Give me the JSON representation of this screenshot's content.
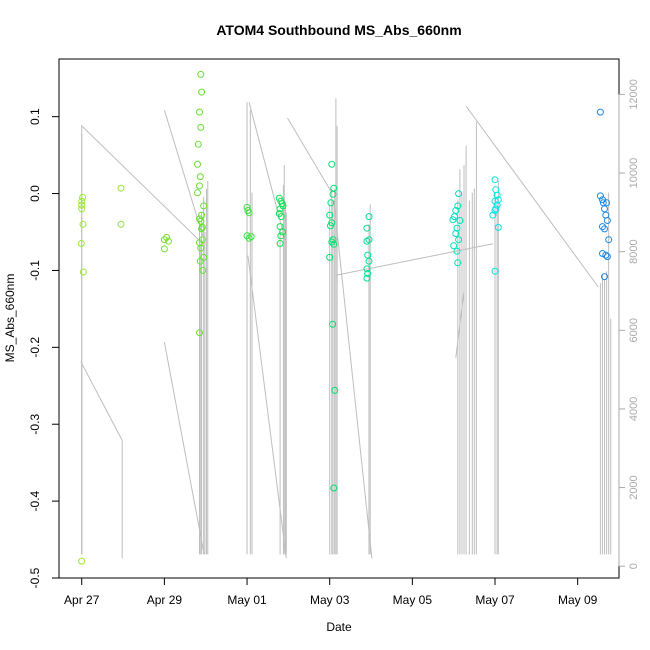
{
  "chart_data": {
    "type": "scatter",
    "title": "ATOM4 Southbound MS_Abs_660nm",
    "xlabel": "Date",
    "ylabel": "MS_Abs_660nm",
    "x_ticks": [
      "Apr 27",
      "Apr 29",
      "May 01",
      "May 03",
      "May 05",
      "May 07",
      "May 09"
    ],
    "x_tick_days": [
      0,
      2,
      4,
      6,
      8,
      10,
      12
    ],
    "xlim_days": [
      -0.55,
      13.0
    ],
    "y_ticks": [
      -0.5,
      -0.4,
      -0.3,
      -0.2,
      -0.1,
      0.0,
      0.1
    ],
    "y_tick_labels": [
      "-0.5",
      "-0.4",
      "-0.3",
      "-0.2",
      "-0.1",
      "0.0",
      "0.1"
    ],
    "ylim": [
      -0.5,
      0.175
    ],
    "y2_ticks": [
      0,
      2000,
      4000,
      6000,
      8000,
      10000,
      12000
    ],
    "y2_tick_labels": [
      "0",
      "2000",
      "4000",
      "6000",
      "8000",
      "10000",
      "12000"
    ],
    "y2lim": [
      -300,
      12900
    ],
    "grid": false,
    "colors": {
      "points_start": "#8fe33a",
      "points_mid": "#00e070",
      "points_late": "#00e5e5",
      "points_end": "#1e88e5",
      "altitude_line": "#bebebe",
      "axis": "#000000",
      "right_axis": "#aaaaaa"
    },
    "series": [
      {
        "type": "points",
        "points": [
          [
            0.0,
            -0.01,
            "#9be83a"
          ],
          [
            0.0,
            -0.015,
            "#9be83a"
          ],
          [
            0.0,
            -0.02,
            "#9be83a"
          ],
          [
            0.02,
            -0.005,
            "#9be83a"
          ],
          [
            0.03,
            -0.04,
            "#9be83a"
          ],
          [
            -0.01,
            -0.065,
            "#9be83a"
          ],
          [
            0.04,
            -0.102,
            "#9be83a"
          ],
          [
            0.0,
            -0.478,
            "#9be83a"
          ],
          [
            0.95,
            0.007,
            "#8fe33a"
          ],
          [
            0.95,
            -0.04,
            "#8fe33a"
          ],
          [
            2.0,
            -0.06,
            "#78e030"
          ],
          [
            2.05,
            -0.057,
            "#78e030"
          ],
          [
            2.1,
            -0.062,
            "#78e030"
          ],
          [
            2.0,
            -0.072,
            "#78e030"
          ],
          [
            2.88,
            0.155,
            "#66e030"
          ],
          [
            2.9,
            0.132,
            "#66e030"
          ],
          [
            2.85,
            0.106,
            "#66e030"
          ],
          [
            2.88,
            0.086,
            "#66e030"
          ],
          [
            2.82,
            0.064,
            "#66e030"
          ],
          [
            2.8,
            0.038,
            "#66e030"
          ],
          [
            2.87,
            0.022,
            "#66e030"
          ],
          [
            2.85,
            0.01,
            "#66e030"
          ],
          [
            2.8,
            0.001,
            "#66e030"
          ],
          [
            2.95,
            -0.016,
            "#66e030"
          ],
          [
            2.9,
            -0.028,
            "#66e030"
          ],
          [
            2.85,
            -0.033,
            "#66e030"
          ],
          [
            2.88,
            -0.036,
            "#66e030"
          ],
          [
            2.92,
            -0.044,
            "#66e030"
          ],
          [
            2.9,
            -0.046,
            "#66e030"
          ],
          [
            2.92,
            -0.06,
            "#66e030"
          ],
          [
            2.85,
            -0.064,
            "#66e030"
          ],
          [
            2.88,
            -0.071,
            "#66e030"
          ],
          [
            2.95,
            -0.083,
            "#66e030"
          ],
          [
            2.87,
            -0.088,
            "#66e030"
          ],
          [
            2.93,
            -0.1,
            "#66e030"
          ],
          [
            2.85,
            -0.181,
            "#66e030"
          ],
          [
            4.0,
            -0.018,
            "#40e040"
          ],
          [
            4.02,
            -0.022,
            "#40e040"
          ],
          [
            4.05,
            -0.025,
            "#40e040"
          ],
          [
            4.0,
            -0.055,
            "#40e040"
          ],
          [
            4.05,
            -0.058,
            "#40e040"
          ],
          [
            4.1,
            -0.056,
            "#40e040"
          ],
          [
            4.78,
            -0.006,
            "#10e050"
          ],
          [
            4.82,
            -0.01,
            "#10e050"
          ],
          [
            4.85,
            -0.013,
            "#10e050"
          ],
          [
            4.87,
            -0.016,
            "#10e050"
          ],
          [
            4.8,
            -0.02,
            "#10e050"
          ],
          [
            4.78,
            -0.026,
            "#10e050"
          ],
          [
            4.83,
            -0.03,
            "#10e050"
          ],
          [
            4.8,
            -0.043,
            "#10e050"
          ],
          [
            4.86,
            -0.05,
            "#10e050"
          ],
          [
            4.82,
            -0.055,
            "#10e050"
          ],
          [
            4.8,
            -0.065,
            "#10e050"
          ],
          [
            6.05,
            0.038,
            "#00e070"
          ],
          [
            6.1,
            0.007,
            "#00e070"
          ],
          [
            6.08,
            -0.001,
            "#00e070"
          ],
          [
            6.03,
            -0.012,
            "#00e070"
          ],
          [
            6.0,
            -0.028,
            "#00e070"
          ],
          [
            6.05,
            -0.038,
            "#00e070"
          ],
          [
            6.02,
            -0.042,
            "#00e070"
          ],
          [
            6.08,
            -0.06,
            "#00e070"
          ],
          [
            6.05,
            -0.063,
            "#00e070"
          ],
          [
            6.1,
            -0.066,
            "#00e070"
          ],
          [
            6.0,
            -0.083,
            "#00e070"
          ],
          [
            6.07,
            -0.17,
            "#00e070"
          ],
          [
            6.12,
            -0.256,
            "#00e070"
          ],
          [
            6.1,
            -0.383,
            "#00e070"
          ],
          [
            6.95,
            -0.03,
            "#00e090"
          ],
          [
            6.9,
            -0.045,
            "#00e090"
          ],
          [
            6.95,
            -0.06,
            "#00e090"
          ],
          [
            6.9,
            -0.062,
            "#00e090"
          ],
          [
            6.92,
            -0.08,
            "#00e090"
          ],
          [
            6.95,
            -0.088,
            "#00e090"
          ],
          [
            6.9,
            -0.098,
            "#00e090"
          ],
          [
            6.92,
            -0.104,
            "#00e090"
          ],
          [
            6.9,
            -0.11,
            "#00e090"
          ],
          [
            10.0,
            0.018,
            "#00e5e5"
          ],
          [
            10.02,
            0.005,
            "#00e5e5"
          ],
          [
            10.05,
            -0.002,
            "#00e5e5"
          ],
          [
            10.08,
            -0.008,
            "#00e5e5"
          ],
          [
            10.0,
            -0.01,
            "#00e5e5"
          ],
          [
            10.05,
            -0.015,
            "#00e5e5"
          ],
          [
            10.02,
            -0.02,
            "#00e5e5"
          ],
          [
            10.0,
            -0.022,
            "#00e5e5"
          ],
          [
            9.95,
            -0.028,
            "#00e5e5"
          ],
          [
            10.08,
            -0.044,
            "#00e5e5"
          ],
          [
            10.0,
            -0.101,
            "#00e5e5"
          ],
          [
            9.12,
            0.0,
            "#00e0c0"
          ],
          [
            9.1,
            -0.016,
            "#00e0c0"
          ],
          [
            9.05,
            -0.022,
            "#00e0c0"
          ],
          [
            9.02,
            -0.03,
            "#00e0c0"
          ],
          [
            8.98,
            -0.034,
            "#00e0c0"
          ],
          [
            9.15,
            -0.035,
            "#00e0c0"
          ],
          [
            9.08,
            -0.045,
            "#00e0c0"
          ],
          [
            9.05,
            -0.052,
            "#00e0c0"
          ],
          [
            9.12,
            -0.06,
            "#00e0c0"
          ],
          [
            9.0,
            -0.068,
            "#00e0c0"
          ],
          [
            9.08,
            -0.075,
            "#00e0c0"
          ],
          [
            9.1,
            -0.09,
            "#00e0c0"
          ],
          [
            12.55,
            0.106,
            "#1e88e5"
          ],
          [
            12.55,
            -0.003,
            "#1e88e5"
          ],
          [
            12.6,
            -0.008,
            "#1e88e5"
          ],
          [
            12.62,
            -0.012,
            "#1e88e5"
          ],
          [
            12.7,
            -0.012,
            "#1e88e5"
          ],
          [
            12.65,
            -0.02,
            "#1e88e5"
          ],
          [
            12.68,
            -0.028,
            "#1e88e5"
          ],
          [
            12.72,
            -0.035,
            "#1e88e5"
          ],
          [
            12.6,
            -0.043,
            "#1e88e5"
          ],
          [
            12.65,
            -0.046,
            "#1e88e5"
          ],
          [
            12.75,
            -0.06,
            "#1e88e5"
          ],
          [
            12.6,
            -0.078,
            "#1e88e5"
          ],
          [
            12.68,
            -0.08,
            "#1e88e5"
          ],
          [
            12.72,
            -0.082,
            "#1e88e5"
          ],
          [
            12.65,
            -0.108,
            "#1e88e5"
          ]
        ]
      },
      {
        "type": "altitude_line",
        "axis": "right",
        "segments": [
          [
            [
              0.0,
              300
            ],
            [
              0.0,
              11200
            ],
            [
              2.93,
              8200
            ]
          ],
          [
            [
              -0.02,
              5200
            ],
            [
              0.98,
              3200
            ],
            [
              0.98,
              200
            ]
          ],
          [
            [
              2.0,
              11600
            ],
            [
              2.93,
              8400
            ]
          ],
          [
            [
              2.0,
              5700
            ],
            [
              2.96,
              300
            ]
          ],
          [
            [
              4.05,
              11800
            ],
            [
              4.92,
              8300
            ]
          ],
          [
            [
              4.02,
              7900
            ],
            [
              4.95,
              200
            ]
          ],
          [
            [
              4.98,
              11400
            ],
            [
              6.05,
              9500
            ]
          ],
          [
            [
              6.15,
              7400
            ],
            [
              9.95,
              8200
            ]
          ],
          [
            [
              7.02,
              200
            ],
            [
              6.1,
              9300
            ]
          ],
          [
            [
              9.3,
              11700
            ],
            [
              12.5,
              7100
            ]
          ],
          [
            [
              9.05,
              5300
            ],
            [
              9.25,
              7000
            ]
          ]
        ],
        "spikes": [
          [
            0.0,
            300,
            5100
          ],
          [
            0.0,
            300,
            11000
          ],
          [
            2.85,
            300,
            8800
          ],
          [
            2.9,
            300,
            9000
          ],
          [
            2.95,
            300,
            9400
          ],
          [
            2.98,
            300,
            8500
          ],
          [
            3.02,
            300,
            9600
          ],
          [
            3.05,
            300,
            9800
          ],
          [
            2.88,
            300,
            8200
          ],
          [
            4.0,
            300,
            11800
          ],
          [
            4.08,
            300,
            11600
          ],
          [
            4.12,
            300,
            9500
          ],
          [
            4.88,
            300,
            9700
          ],
          [
            4.9,
            300,
            10200
          ],
          [
            4.93,
            300,
            9200
          ],
          [
            4.95,
            300,
            9000
          ],
          [
            4.8,
            300,
            8600
          ],
          [
            6.05,
            300,
            9600
          ],
          [
            6.08,
            300,
            9300
          ],
          [
            6.12,
            300,
            9600
          ],
          [
            6.15,
            300,
            11900
          ],
          [
            6.18,
            300,
            11200
          ],
          [
            6.0,
            300,
            9200
          ],
          [
            6.95,
            300,
            8700
          ],
          [
            6.98,
            300,
            9200
          ],
          [
            9.1,
            300,
            9300
          ],
          [
            9.15,
            300,
            10100
          ],
          [
            9.2,
            300,
            9500
          ],
          [
            9.25,
            300,
            10200
          ],
          [
            9.3,
            300,
            10700
          ],
          [
            9.38,
            300,
            9300
          ],
          [
            9.45,
            300,
            9500
          ],
          [
            9.5,
            300,
            9600
          ],
          [
            9.55,
            300,
            11300
          ],
          [
            10.0,
            300,
            9500
          ],
          [
            10.05,
            300,
            9200
          ],
          [
            10.08,
            300,
            9800
          ],
          [
            12.55,
            300,
            7200
          ],
          [
            12.6,
            300,
            7400
          ],
          [
            12.65,
            300,
            7300
          ],
          [
            12.7,
            300,
            7500
          ],
          [
            12.75,
            300,
            9500
          ],
          [
            12.8,
            300,
            6300
          ]
        ]
      }
    ]
  }
}
